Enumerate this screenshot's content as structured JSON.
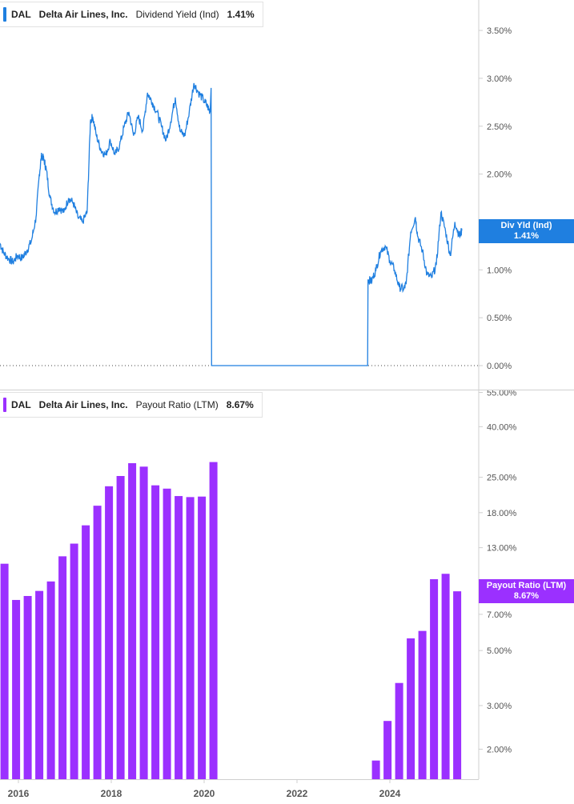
{
  "colors": {
    "yield": "#1f7fe0",
    "payout": "#9b30ff",
    "axis": "#cfcfcf",
    "text": "#555555"
  },
  "top_legend": {
    "ticker": "DAL",
    "company": "Delta Air Lines, Inc.",
    "metric": "Dividend Yield (Ind)",
    "value": "1.41%"
  },
  "bottom_legend": {
    "ticker": "DAL",
    "company": "Delta Air Lines, Inc.",
    "metric": "Payout Ratio (LTM)",
    "value": "8.67%"
  },
  "top_flag": {
    "label": "Div Yld (Ind)",
    "value": "1.41%"
  },
  "bottom_flag": {
    "label": "Payout Ratio (LTM)",
    "value": "8.67%"
  },
  "chart_data": [
    {
      "type": "line",
      "series": [
        {
          "name": "Dividend Yield (Ind)",
          "x": [
            2015.6,
            2015.68,
            2015.78,
            2015.88,
            2015.98,
            2016.08,
            2016.18,
            2016.28,
            2016.38,
            2016.45,
            2016.5,
            2016.55,
            2016.6,
            2016.68,
            2016.78,
            2016.88,
            2016.98,
            2017.08,
            2017.18,
            2017.28,
            2017.38,
            2017.48,
            2017.55,
            2017.6,
            2017.68,
            2017.78,
            2017.88,
            2017.98,
            2018.08,
            2018.18,
            2018.28,
            2018.38,
            2018.48,
            2018.58,
            2018.68,
            2018.78,
            2018.88,
            2018.98,
            2019.08,
            2019.18,
            2019.28,
            2019.38,
            2019.48,
            2019.58,
            2019.68,
            2019.78,
            2019.88,
            2019.98,
            2020.08,
            2020.13,
            2020.15,
            2020.16,
            2023.52,
            2023.53,
            2023.6,
            2023.7,
            2023.8,
            2023.9,
            2024.0,
            2024.1,
            2024.2,
            2024.3,
            2024.35,
            2024.45,
            2024.55,
            2024.6,
            2024.7,
            2024.8,
            2024.9,
            2025.0,
            2025.1,
            2025.2,
            2025.3,
            2025.4,
            2025.5,
            2025.55
          ],
          "values": [
            1.28,
            1.18,
            1.12,
            1.08,
            1.15,
            1.12,
            1.2,
            1.3,
            1.55,
            2.0,
            2.2,
            2.15,
            2.05,
            1.75,
            1.6,
            1.65,
            1.6,
            1.75,
            1.7,
            1.55,
            1.5,
            1.6,
            2.55,
            2.6,
            2.4,
            2.25,
            2.2,
            2.35,
            2.2,
            2.3,
            2.5,
            2.65,
            2.4,
            2.6,
            2.45,
            2.85,
            2.75,
            2.65,
            2.5,
            2.35,
            2.55,
            2.8,
            2.45,
            2.4,
            2.65,
            2.95,
            2.85,
            2.78,
            2.7,
            2.65,
            2.9,
            0.0,
            0.0,
            0.9,
            0.88,
            1.0,
            1.2,
            1.25,
            1.1,
            1.0,
            0.82,
            0.8,
            0.85,
            1.4,
            1.55,
            1.35,
            1.2,
            0.95,
            0.92,
            1.05,
            1.6,
            1.4,
            1.15,
            1.5,
            1.35,
            1.41
          ]
        }
      ],
      "y_ticks": [
        "0.00%",
        "0.50%",
        "1.00%",
        "1.50%",
        "2.00%",
        "2.50%",
        "3.00%",
        "3.50%"
      ],
      "ylim": [
        0,
        3.8
      ]
    },
    {
      "type": "bar",
      "scale": "log",
      "series": [
        {
          "name": "Payout Ratio (LTM)",
          "x": [
            2015.7,
            2015.95,
            2016.2,
            2016.45,
            2016.7,
            2016.95,
            2017.2,
            2017.45,
            2017.7,
            2017.95,
            2018.2,
            2018.45,
            2018.7,
            2018.95,
            2019.2,
            2019.45,
            2019.7,
            2019.95,
            2020.2,
            2023.7,
            2023.95,
            2024.2,
            2024.45,
            2024.7,
            2024.95,
            2025.2,
            2025.45
          ],
          "values": [
            11.2,
            8.0,
            8.3,
            8.7,
            9.5,
            12.0,
            13.5,
            16.0,
            19.2,
            23.0,
            25.3,
            28.5,
            27.6,
            23.2,
            22.5,
            21.0,
            20.8,
            20.9,
            28.8,
            1.8,
            2.6,
            3.7,
            5.6,
            6.0,
            9.7,
            10.2,
            8.67
          ]
        }
      ],
      "y_ticks": [
        "2.00%",
        "3.00%",
        "5.00%",
        "7.00%",
        "9.00%",
        "13.00%",
        "18.00%",
        "25.00%",
        "40.00%",
        "55.00%"
      ],
      "ylim": [
        1.6,
        55
      ]
    }
  ],
  "x_axis_labels": [
    "2016",
    "2018",
    "2020",
    "2022",
    "2024"
  ]
}
